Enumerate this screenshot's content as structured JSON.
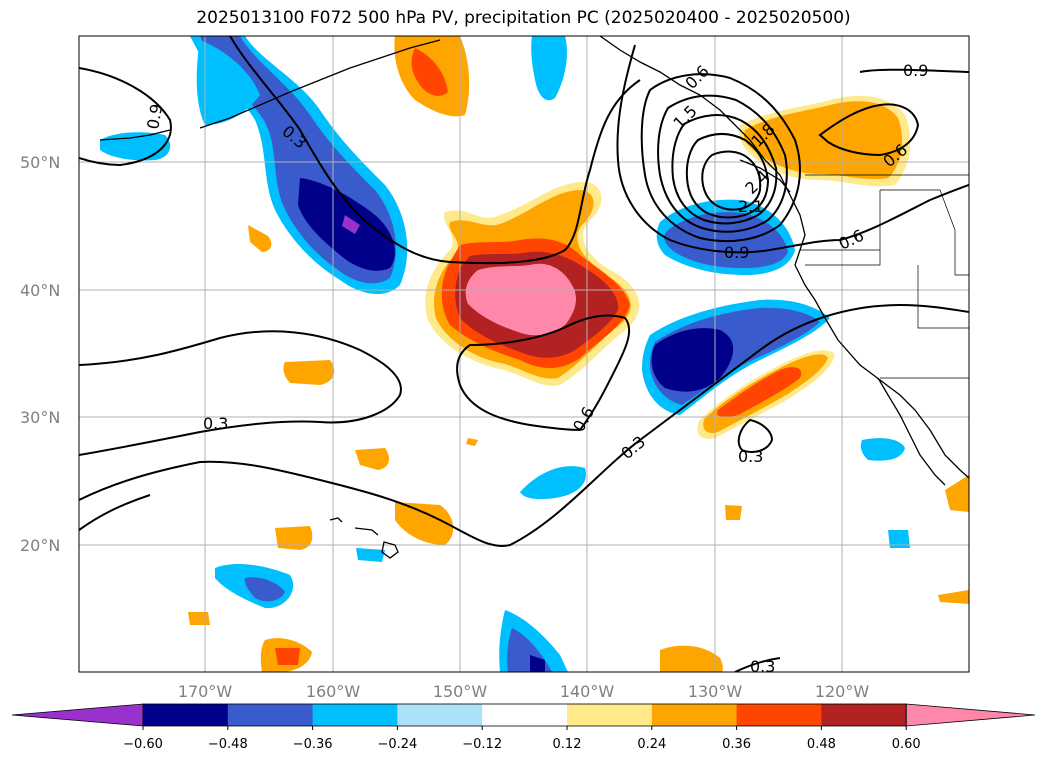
{
  "title": "2025013100 F072 500 hPa PV, precipitation PC (2025020400 - 2025020500)",
  "lat_labels": [
    "50°N",
    "40°N",
    "30°N",
    "20°N"
  ],
  "lon_labels": [
    "170°W",
    "160°W",
    "150°W",
    "140°W",
    "130°W",
    "120°W"
  ],
  "contour_labels": [
    "0.9",
    "0.3",
    "0.3",
    "0.6",
    "0.3",
    "0.9",
    "0.6",
    "2.1",
    "0.6",
    "0.9",
    "1.5",
    "1.8",
    "2.4",
    "0.3",
    "0.3",
    "0.6"
  ],
  "colorbar": {
    "ticks": [
      "−0.60",
      "−0.48",
      "−0.36",
      "−0.24",
      "−0.12",
      "0.12",
      "0.24",
      "0.36",
      "0.48",
      "0.60"
    ],
    "colors": [
      "#9932CC",
      "#00008B",
      "#3A5BCB",
      "#00BFFF",
      "#ADE1F8",
      "#FFFFFF",
      "#FFE98A",
      "#FFA500",
      "#FF4500",
      "#B22222",
      "#FF88AA"
    ]
  }
}
